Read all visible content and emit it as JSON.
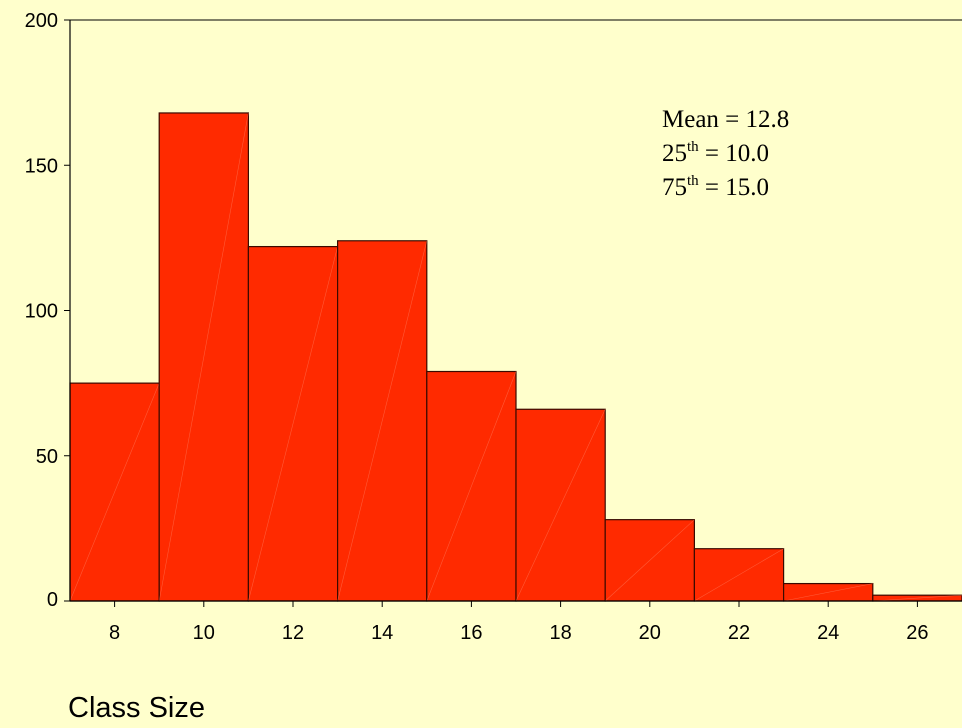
{
  "chart_data": {
    "type": "bar",
    "bin_edges": [
      7,
      9,
      11,
      13,
      15,
      17,
      19,
      21,
      23,
      25,
      27
    ],
    "values": [
      75,
      168,
      122,
      124,
      79,
      66,
      28,
      18,
      6,
      2
    ],
    "bar_color": "#ff2a00",
    "xlabel": "Class Size",
    "ylabel": "",
    "xlim": [
      7,
      27
    ],
    "ylim": [
      0,
      200
    ],
    "xticks": [
      8,
      10,
      12,
      14,
      16,
      18,
      20,
      22,
      24,
      26
    ],
    "yticks": [
      0,
      50,
      100,
      150,
      200
    ],
    "grid": false,
    "annotations": [
      {
        "label": "Mean",
        "value": "12.8"
      },
      {
        "label": "25",
        "sup": "th",
        "value": "10.0"
      },
      {
        "label": "75",
        "sup": "th",
        "value": "15.0"
      }
    ]
  }
}
